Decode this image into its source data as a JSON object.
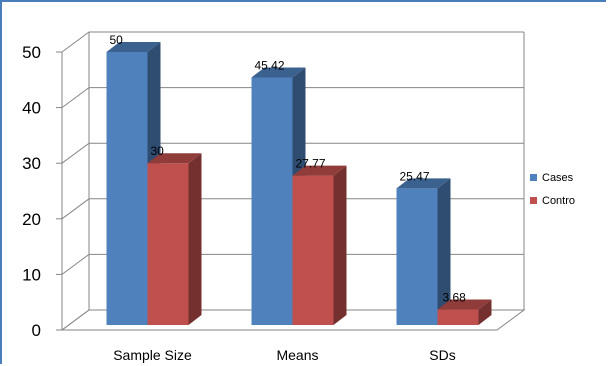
{
  "chart_data": {
    "type": "bar",
    "categories": [
      "Sample Size",
      "Means",
      "SDs"
    ],
    "series": [
      {
        "name": "Cases",
        "values": [
          50,
          45.42,
          25.47
        ],
        "labels": [
          "50",
          "45.42",
          "25.47"
        ],
        "color": "#4f81bd"
      },
      {
        "name": "Contro",
        "values": [
          30,
          27.77,
          3.68
        ],
        "labels": [
          "30",
          "27.77",
          "3.68"
        ],
        "color": "#c0504d"
      }
    ],
    "yticks": [
      "0",
      "10",
      "20",
      "30",
      "40",
      "50"
    ],
    "ylim": [
      0,
      50
    ],
    "grid": true,
    "legend_position": "right",
    "style": "3d-clustered-column"
  }
}
